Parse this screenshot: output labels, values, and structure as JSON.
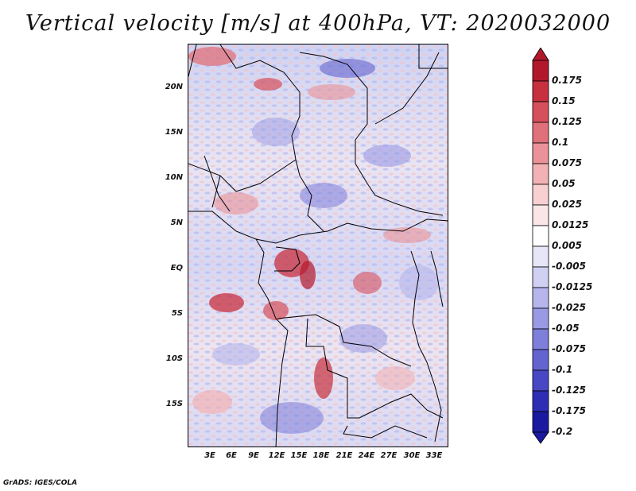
{
  "title": "Vertical velocity [m/s] at 400hPa, VT: 2020032000",
  "credit": "GrADS: IGES/COLA",
  "map": {
    "lat_labels": [
      "20N",
      "15N",
      "10N",
      "5N",
      "EQ",
      "5S",
      "10S",
      "15S"
    ],
    "lon_labels": [
      "3E",
      "6E",
      "9E",
      "12E",
      "15E",
      "18E",
      "21E",
      "24E",
      "27E",
      "30E",
      "33E"
    ]
  },
  "colorbar": {
    "labels": [
      "0.175",
      "0.15",
      "0.125",
      "0.1",
      "0.075",
      "0.05",
      "0.025",
      "0.0125",
      "0.005",
      "-0.005",
      "-0.0125",
      "-0.025",
      "-0.05",
      "-0.075",
      "-0.1",
      "-0.125",
      "-0.175",
      "-0.2"
    ],
    "colors": [
      "#b2182b",
      "#c7303f",
      "#d6505c",
      "#e0707a",
      "#ea9298",
      "#f2b2b5",
      "#f8d0d2",
      "#fbe6e7",
      "#ffffff",
      "#e6e6f8",
      "#d0d0f2",
      "#b6b6ec",
      "#9a9ae4",
      "#7e7edb",
      "#6464d0",
      "#4848c4",
      "#2e2eb4",
      "#1a1aa0"
    ]
  }
}
